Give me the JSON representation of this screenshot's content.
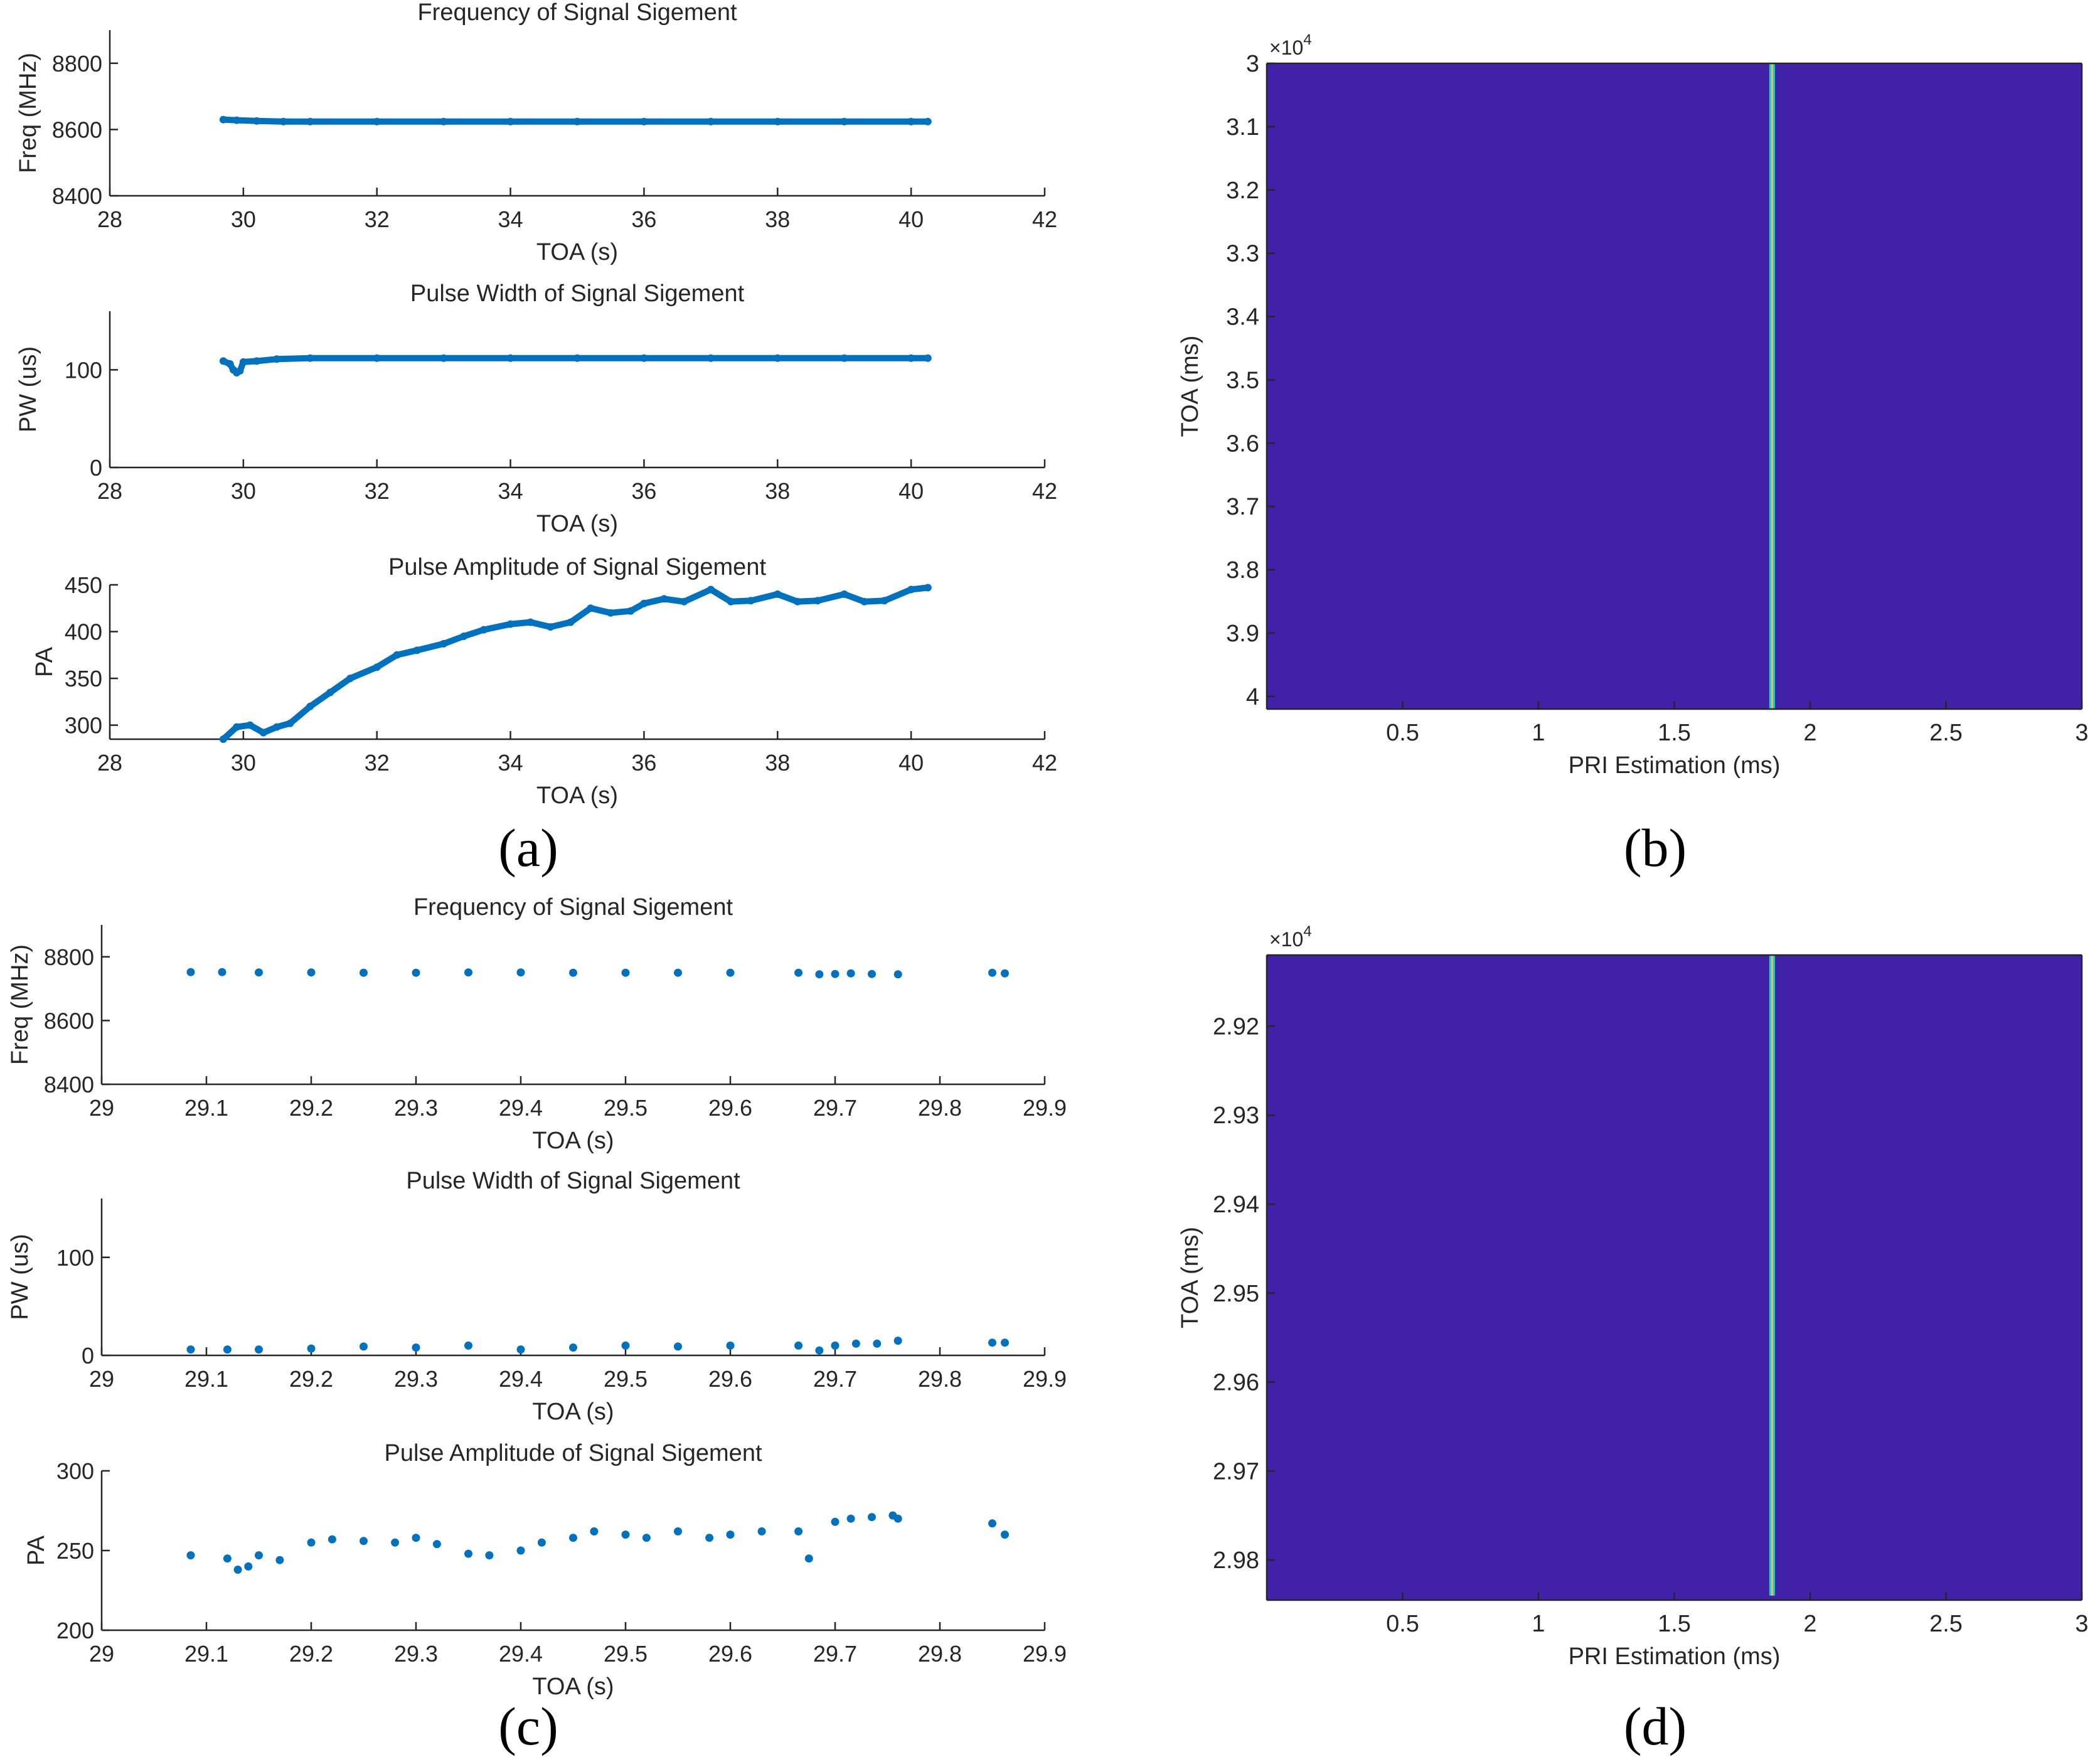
{
  "panel_labels": [
    "(a)",
    "(b)",
    "(c)",
    "(d)"
  ],
  "colors": {
    "marker": "#0072BD",
    "heatmap_bg": "#4121A8",
    "axis": "#262626",
    "ridge": "#FFB347"
  },
  "chart_data": [
    {
      "id": "a1",
      "type": "scatter",
      "title": "Frequency of Signal Sigement",
      "xlabel": "TOA (s)",
      "ylabel": "Freq (MHz)",
      "xlim": [
        28,
        42
      ],
      "ylim": [
        8400,
        8900
      ],
      "xticks": [
        28,
        30,
        32,
        34,
        36,
        38,
        40,
        42
      ],
      "yticks": [
        8400,
        8600,
        8800
      ],
      "x": [
        29.7,
        29.9,
        30.2,
        30.6,
        31,
        32,
        33,
        34,
        35,
        36,
        37,
        38,
        39,
        40,
        40.25
      ],
      "y": [
        8630,
        8628,
        8626,
        8624,
        8624,
        8624,
        8624,
        8624,
        8624,
        8624,
        8624,
        8624,
        8624,
        8624,
        8624
      ]
    },
    {
      "id": "a2",
      "type": "scatter",
      "title": "Pulse Width of Signal Sigement",
      "xlabel": "TOA (s)",
      "ylabel": "PW (us)",
      "xlim": [
        28,
        42
      ],
      "ylim": [
        0,
        160
      ],
      "xticks": [
        28,
        30,
        32,
        34,
        36,
        38,
        40,
        42
      ],
      "yticks": [
        0,
        100
      ],
      "x": [
        29.7,
        29.8,
        29.85,
        29.9,
        29.95,
        30.0,
        30.2,
        30.5,
        31,
        32,
        33,
        34,
        35,
        36,
        37,
        38,
        39,
        40,
        40.25
      ],
      "y": [
        109,
        106,
        100,
        97,
        99,
        108,
        109,
        111,
        112,
        112,
        112,
        112,
        112,
        112,
        112,
        112,
        112,
        112,
        112
      ]
    },
    {
      "id": "a3",
      "type": "line",
      "title": "Pulse Amplitude of Signal Sigement",
      "xlabel": "TOA (s)",
      "ylabel": "PA",
      "xlim": [
        28,
        42
      ],
      "ylim": [
        285,
        450
      ],
      "xticks": [
        28,
        30,
        32,
        34,
        36,
        38,
        40,
        42
      ],
      "yticks": [
        300,
        350,
        400,
        450
      ],
      "x": [
        29.7,
        29.9,
        30.1,
        30.3,
        30.5,
        30.7,
        31.0,
        31.3,
        31.6,
        32.0,
        32.3,
        32.6,
        33.0,
        33.3,
        33.6,
        34.0,
        34.3,
        34.6,
        34.9,
        35.2,
        35.5,
        35.8,
        36.0,
        36.3,
        36.6,
        37.0,
        37.3,
        37.6,
        38.0,
        38.3,
        38.6,
        39.0,
        39.3,
        39.6,
        40.0,
        40.25
      ],
      "y": [
        285,
        298,
        300,
        292,
        298,
        302,
        320,
        335,
        350,
        362,
        375,
        380,
        387,
        395,
        402,
        408,
        410,
        405,
        410,
        425,
        420,
        422,
        430,
        435,
        432,
        445,
        432,
        433,
        440,
        432,
        433,
        440,
        432,
        433,
        445,
        447
      ]
    },
    {
      "id": "b",
      "type": "heatmap",
      "title": "",
      "xlabel": "PRI Estimation (ms)",
      "ylabel": "TOA (ms)",
      "xlim": [
        0,
        3
      ],
      "ylim": [
        30000,
        40200
      ],
      "xticks": [
        0.5,
        1,
        1.5,
        2,
        2.5,
        3
      ],
      "xtick_labels": [
        "0.5",
        "1",
        "1.5",
        "2",
        "2.5",
        "3"
      ],
      "yticks": [
        30000,
        31000,
        32000,
        33000,
        34000,
        35000,
        36000,
        37000,
        38000,
        39000,
        40000
      ],
      "ytick_labels": [
        "3",
        "3.1",
        "3.2",
        "3.3",
        "3.4",
        "3.5",
        "3.6",
        "3.7",
        "3.8",
        "3.9",
        "4"
      ],
      "exponent_label": "×10",
      "exponent_power": "4",
      "ridge_pri": 1.86,
      "ridge_toa_range": [
        30000,
        40200
      ]
    },
    {
      "id": "c1",
      "type": "scatter",
      "title": "Frequency of Signal Sigement",
      "xlabel": "TOA (s)",
      "ylabel": "Freq (MHz)",
      "xlim": [
        29,
        29.9
      ],
      "ylim": [
        8400,
        8900
      ],
      "xticks": [
        29,
        29.1,
        29.2,
        29.3,
        29.4,
        29.5,
        29.6,
        29.7,
        29.8,
        29.9
      ],
      "yticks": [
        8400,
        8600,
        8800
      ],
      "x": [
        29.085,
        29.115,
        29.15,
        29.2,
        29.25,
        29.3,
        29.35,
        29.4,
        29.45,
        29.5,
        29.55,
        29.6,
        29.665,
        29.685,
        29.7,
        29.715,
        29.735,
        29.76,
        29.85,
        29.862
      ],
      "y": [
        8752,
        8752,
        8751,
        8751,
        8750,
        8750,
        8751,
        8751,
        8750,
        8750,
        8750,
        8750,
        8750,
        8745,
        8746,
        8748,
        8746,
        8745,
        8750,
        8748
      ]
    },
    {
      "id": "c2",
      "type": "scatter",
      "title": "Pulse Width of Signal Sigement",
      "xlabel": "TOA (s)",
      "ylabel": "PW (us)",
      "xlim": [
        29,
        29.9
      ],
      "ylim": [
        0,
        160
      ],
      "xticks": [
        29,
        29.1,
        29.2,
        29.3,
        29.4,
        29.5,
        29.6,
        29.7,
        29.8,
        29.9
      ],
      "yticks": [
        0,
        100
      ],
      "x": [
        29.085,
        29.12,
        29.15,
        29.2,
        29.25,
        29.3,
        29.35,
        29.4,
        29.45,
        29.5,
        29.55,
        29.6,
        29.665,
        29.685,
        29.7,
        29.72,
        29.74,
        29.76,
        29.85,
        29.862
      ],
      "y": [
        6,
        6,
        6,
        7,
        9,
        8,
        10,
        6,
        8,
        10,
        9,
        10,
        10,
        5,
        10,
        12,
        12,
        15,
        13,
        13
      ]
    },
    {
      "id": "c3",
      "type": "scatter",
      "title": "Pulse Amplitude of Signal Sigement",
      "xlabel": "TOA (s)",
      "ylabel": "PA",
      "xlim": [
        29,
        29.9
      ],
      "ylim": [
        200,
        300
      ],
      "xticks": [
        29,
        29.1,
        29.2,
        29.3,
        29.4,
        29.5,
        29.6,
        29.7,
        29.8,
        29.9
      ],
      "yticks": [
        200,
        250,
        300
      ],
      "x": [
        29.085,
        29.12,
        29.13,
        29.14,
        29.15,
        29.17,
        29.2,
        29.22,
        29.25,
        29.28,
        29.3,
        29.32,
        29.35,
        29.37,
        29.4,
        29.42,
        29.45,
        29.47,
        29.5,
        29.52,
        29.55,
        29.58,
        29.6,
        29.63,
        29.665,
        29.675,
        29.7,
        29.715,
        29.735,
        29.755,
        29.76,
        29.85,
        29.862
      ],
      "y": [
        247,
        245,
        238,
        240,
        247,
        244,
        255,
        257,
        256,
        255,
        258,
        254,
        248,
        247,
        250,
        255,
        258,
        262,
        260,
        258,
        262,
        258,
        260,
        262,
        262,
        245,
        268,
        270,
        271,
        272,
        270,
        267,
        260
      ]
    },
    {
      "id": "d",
      "type": "heatmap",
      "title": "",
      "xlabel": "PRI Estimation (ms)",
      "ylabel": "TOA (ms)",
      "xlim": [
        0,
        3
      ],
      "ylim": [
        29120,
        29845
      ],
      "xticks": [
        0.5,
        1,
        1.5,
        2,
        2.5,
        3
      ],
      "xtick_labels": [
        "0.5",
        "1",
        "1.5",
        "2",
        "2.5",
        "3"
      ],
      "yticks": [
        29200,
        29300,
        29400,
        29500,
        29600,
        29700,
        29800
      ],
      "ytick_labels": [
        "2.92",
        "2.93",
        "2.94",
        "2.95",
        "2.96",
        "2.97",
        "2.98"
      ],
      "exponent_label": "×10",
      "exponent_power": "4",
      "ridge_pri": 1.86,
      "ridge_toa_range": [
        29120,
        29840
      ]
    }
  ]
}
